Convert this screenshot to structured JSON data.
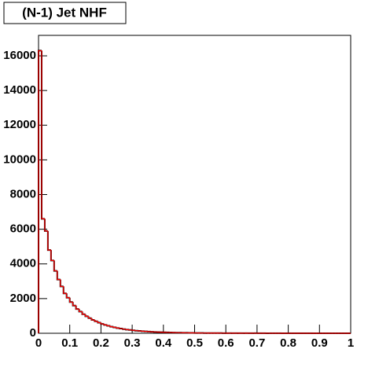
{
  "chart_data": {
    "type": "histogram",
    "title": "(N-1) Jet NHF",
    "bins": [
      0,
      0.01,
      0.02,
      0.03,
      0.04,
      0.05,
      0.06,
      0.07,
      0.08,
      0.09,
      0.1,
      0.11,
      0.12,
      0.13,
      0.14,
      0.15,
      0.16,
      0.17,
      0.18,
      0.19,
      0.2,
      0.21,
      0.22,
      0.23,
      0.24,
      0.25,
      0.26,
      0.27,
      0.28,
      0.29,
      0.3,
      0.31,
      0.32,
      0.33,
      0.34,
      0.35,
      0.36,
      0.37,
      0.38,
      0.39,
      0.4,
      0.41,
      0.42,
      0.43,
      0.44,
      0.45,
      0.46,
      0.47,
      0.48,
      0.49,
      0.5,
      0.51,
      0.52,
      0.53,
      0.54,
      0.55,
      0.56,
      0.57,
      0.58,
      0.59,
      0.6,
      0.61,
      0.62,
      0.63,
      0.64,
      0.65,
      0.66,
      0.67,
      0.68,
      0.69,
      0.7,
      0.71,
      0.72,
      0.73,
      0.74,
      0.75,
      0.76,
      0.77,
      0.78,
      0.79,
      0.8,
      0.81,
      0.82,
      0.83,
      0.84,
      0.85,
      0.86,
      0.87,
      0.88,
      0.89,
      0.9,
      0.91,
      0.92,
      0.93,
      0.94,
      0.95,
      0.96,
      0.97,
      0.98,
      0.99,
      1
    ],
    "series": [
      {
        "color": "#000000",
        "values": [
          16300,
          6600,
          5900,
          4800,
          4200,
          3600,
          3100,
          2700,
          2300,
          2050,
          1800,
          1600,
          1400,
          1250,
          1100,
          980,
          870,
          770,
          690,
          610,
          540,
          480,
          430,
          380,
          340,
          300,
          270,
          240,
          210,
          190,
          170,
          150,
          135,
          120,
          107,
          95,
          85,
          76,
          68,
          61,
          55,
          49,
          44,
          40,
          36,
          32,
          29,
          26,
          23,
          21,
          19,
          17,
          15,
          14,
          13,
          12,
          11,
          10,
          9,
          8,
          7,
          7,
          6,
          6,
          5,
          5,
          4,
          4,
          4,
          3,
          3,
          3,
          3,
          2,
          2,
          2,
          2,
          2,
          1,
          1,
          1,
          1,
          1,
          1,
          1,
          1,
          1,
          1,
          0,
          0,
          0,
          0,
          0,
          0,
          0,
          0,
          0,
          0,
          0,
          0
        ]
      },
      {
        "color": "#ff0000",
        "values": [
          16300,
          6600,
          5900,
          4800,
          4200,
          3600,
          3100,
          2700,
          2300,
          2050,
          1800,
          1600,
          1400,
          1250,
          1100,
          980,
          870,
          770,
          690,
          610,
          540,
          480,
          430,
          380,
          340,
          300,
          270,
          240,
          210,
          190,
          170,
          150,
          135,
          120,
          107,
          95,
          85,
          76,
          68,
          61,
          55,
          49,
          44,
          40,
          36,
          32,
          29,
          26,
          23,
          21,
          19,
          17,
          15,
          14,
          13,
          12,
          11,
          10,
          9,
          8,
          7,
          7,
          6,
          6,
          5,
          5,
          4,
          4,
          4,
          3,
          3,
          3,
          3,
          2,
          2,
          2,
          2,
          2,
          1,
          1,
          1,
          1,
          1,
          1,
          1,
          1,
          1,
          1,
          0,
          0,
          0,
          0,
          0,
          0,
          0,
          0,
          0,
          0,
          0,
          0
        ]
      }
    ],
    "xlim": [
      0,
      1
    ],
    "xticks": [
      0,
      0.1,
      0.2,
      0.3,
      0.4,
      0.5,
      0.6,
      0.7,
      0.8,
      0.9,
      1
    ],
    "ylim": [
      0,
      17180
    ],
    "yticks": [
      0,
      2000,
      4000,
      6000,
      8000,
      10000,
      12000,
      14000,
      16000
    ],
    "grid": false
  }
}
